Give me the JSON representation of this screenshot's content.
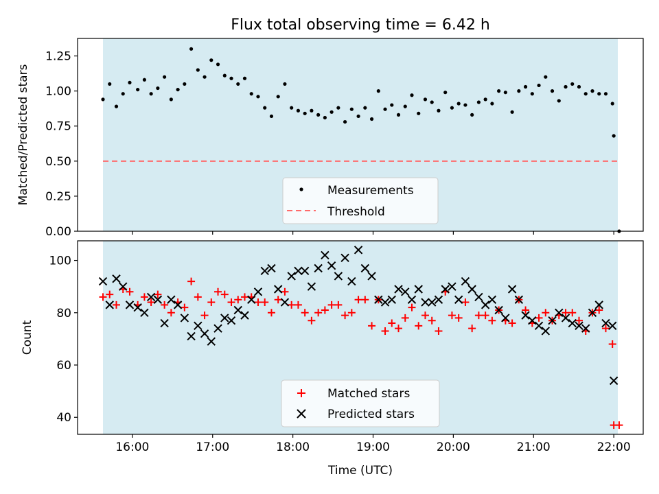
{
  "title": "Flux total observing time = 6.42 h",
  "colors": {
    "span": "#add8e6",
    "measurement": "#000000",
    "threshold": "#ff6b6b",
    "matched": "#ff0000",
    "predicted": "#000000"
  },
  "chart_data": [
    {
      "type": "scatter",
      "ylabel": "Matched/Predicted stars",
      "ylim": [
        0.0,
        1.375
      ],
      "xlim": [
        "15:19",
        "22:22"
      ],
      "yticks": [
        0.0,
        0.25,
        0.5,
        0.75,
        1.0,
        1.25
      ],
      "ytick_labels": [
        "0.00",
        "0.25",
        "0.50",
        "0.75",
        "1.00",
        "1.25"
      ],
      "observing_span": [
        "15:38",
        "22:03"
      ],
      "legend": {
        "position": "bottom-center",
        "labels": [
          "Measurements",
          "Threshold"
        ]
      },
      "threshold": {
        "name": "Threshold",
        "value": 0.5,
        "x_range": [
          "15:38",
          "22:04"
        ]
      },
      "series": [
        {
          "name": "Measurements",
          "marker": "dot",
          "points": [
            [
              "15:38",
              0.94
            ],
            [
              "15:43",
              1.05
            ],
            [
              "15:48",
              0.89
            ],
            [
              "15:53",
              0.98
            ],
            [
              "15:58",
              1.06
            ],
            [
              "16:04",
              1.01
            ],
            [
              "16:09",
              1.08
            ],
            [
              "16:14",
              0.98
            ],
            [
              "16:19",
              1.02
            ],
            [
              "16:24",
              1.1
            ],
            [
              "16:29",
              0.94
            ],
            [
              "16:34",
              1.01
            ],
            [
              "16:39",
              1.05
            ],
            [
              "16:44",
              1.3
            ],
            [
              "16:49",
              1.15
            ],
            [
              "16:54",
              1.1
            ],
            [
              "16:59",
              1.22
            ],
            [
              "17:04",
              1.19
            ],
            [
              "17:09",
              1.11
            ],
            [
              "17:14",
              1.09
            ],
            [
              "17:19",
              1.05
            ],
            [
              "17:24",
              1.09
            ],
            [
              "17:29",
              0.98
            ],
            [
              "17:34",
              0.96
            ],
            [
              "17:39",
              0.88
            ],
            [
              "17:44",
              0.82
            ],
            [
              "17:49",
              0.96
            ],
            [
              "17:54",
              1.05
            ],
            [
              "17:59",
              0.88
            ],
            [
              "18:04",
              0.86
            ],
            [
              "18:09",
              0.84
            ],
            [
              "18:14",
              0.86
            ],
            [
              "18:19",
              0.83
            ],
            [
              "18:24",
              0.81
            ],
            [
              "18:29",
              0.85
            ],
            [
              "18:34",
              0.88
            ],
            [
              "18:39",
              0.78
            ],
            [
              "18:44",
              0.87
            ],
            [
              "18:49",
              0.82
            ],
            [
              "18:54",
              0.88
            ],
            [
              "18:59",
              0.8
            ],
            [
              "19:04",
              1.0
            ],
            [
              "19:09",
              0.87
            ],
            [
              "19:14",
              0.9
            ],
            [
              "19:19",
              0.83
            ],
            [
              "19:24",
              0.89
            ],
            [
              "19:29",
              0.97
            ],
            [
              "19:34",
              0.84
            ],
            [
              "19:39",
              0.94
            ],
            [
              "19:44",
              0.92
            ],
            [
              "19:49",
              0.86
            ],
            [
              "19:54",
              0.99
            ],
            [
              "19:59",
              0.88
            ],
            [
              "20:04",
              0.91
            ],
            [
              "20:09",
              0.9
            ],
            [
              "20:14",
              0.83
            ],
            [
              "20:19",
              0.92
            ],
            [
              "20:24",
              0.94
            ],
            [
              "20:29",
              0.91
            ],
            [
              "20:34",
              1.0
            ],
            [
              "20:39",
              0.99
            ],
            [
              "20:44",
              0.85
            ],
            [
              "20:49",
              1.0
            ],
            [
              "20:54",
              1.03
            ],
            [
              "20:59",
              0.98
            ],
            [
              "21:04",
              1.04
            ],
            [
              "21:09",
              1.1
            ],
            [
              "21:14",
              1.0
            ],
            [
              "21:19",
              0.93
            ],
            [
              "21:24",
              1.03
            ],
            [
              "21:29",
              1.05
            ],
            [
              "21:34",
              1.03
            ],
            [
              "21:39",
              0.98
            ],
            [
              "21:44",
              1.0
            ],
            [
              "21:49",
              0.98
            ],
            [
              "21:54",
              0.98
            ],
            [
              "21:59",
              0.91
            ],
            [
              "22:00",
              0.68
            ],
            [
              "22:04",
              0.0
            ]
          ]
        }
      ]
    },
    {
      "type": "scatter",
      "xlabel": "Time (UTC)",
      "ylabel": "Count",
      "ylim": [
        33.5,
        107.5
      ],
      "xlim": [
        "15:19",
        "22:22"
      ],
      "xticks": [
        "16:00",
        "17:00",
        "18:00",
        "19:00",
        "20:00",
        "21:00",
        "22:00"
      ],
      "yticks": [
        40,
        60,
        80,
        100
      ],
      "ytick_labels": [
        "40",
        "60",
        "80",
        "100"
      ],
      "observing_span": [
        "15:38",
        "22:03"
      ],
      "legend": {
        "position": "bottom-center",
        "labels": [
          "Matched stars",
          "Predicted stars"
        ]
      },
      "series": [
        {
          "name": "Matched stars",
          "marker": "plus",
          "points": [
            [
              "15:38",
              86
            ],
            [
              "15:43",
              87
            ],
            [
              "15:48",
              83
            ],
            [
              "15:53",
              89
            ],
            [
              "15:58",
              88
            ],
            [
              "16:04",
              83
            ],
            [
              "16:09",
              86
            ],
            [
              "16:14",
              84
            ],
            [
              "16:19",
              87
            ],
            [
              "16:24",
              83
            ],
            [
              "16:29",
              80
            ],
            [
              "16:34",
              84
            ],
            [
              "16:39",
              82
            ],
            [
              "16:44",
              92
            ],
            [
              "16:49",
              86
            ],
            [
              "16:54",
              79
            ],
            [
              "16:59",
              84
            ],
            [
              "17:04",
              88
            ],
            [
              "17:09",
              87
            ],
            [
              "17:14",
              84
            ],
            [
              "17:19",
              85
            ],
            [
              "17:24",
              86
            ],
            [
              "17:29",
              86
            ],
            [
              "17:34",
              84
            ],
            [
              "17:39",
              84
            ],
            [
              "17:44",
              80
            ],
            [
              "17:49",
              85
            ],
            [
              "17:54",
              88
            ],
            [
              "17:59",
              83
            ],
            [
              "18:04",
              83
            ],
            [
              "18:09",
              80
            ],
            [
              "18:14",
              77
            ],
            [
              "18:19",
              80
            ],
            [
              "18:24",
              81
            ],
            [
              "18:29",
              83
            ],
            [
              "18:34",
              83
            ],
            [
              "18:39",
              79
            ],
            [
              "18:44",
              80
            ],
            [
              "18:49",
              85
            ],
            [
              "18:54",
              85
            ],
            [
              "18:59",
              75
            ],
            [
              "19:04",
              85
            ],
            [
              "19:09",
              73
            ],
            [
              "19:14",
              76
            ],
            [
              "19:19",
              74
            ],
            [
              "19:24",
              78
            ],
            [
              "19:29",
              82
            ],
            [
              "19:34",
              75
            ],
            [
              "19:39",
              79
            ],
            [
              "19:44",
              77
            ],
            [
              "19:49",
              73
            ],
            [
              "19:54",
              88
            ],
            [
              "19:59",
              79
            ],
            [
              "20:04",
              78
            ],
            [
              "20:09",
              84
            ],
            [
              "20:14",
              74
            ],
            [
              "20:19",
              79
            ],
            [
              "20:24",
              79
            ],
            [
              "20:29",
              77
            ],
            [
              "20:34",
              81
            ],
            [
              "20:39",
              77
            ],
            [
              "20:44",
              76
            ],
            [
              "20:49",
              85
            ],
            [
              "20:54",
              81
            ],
            [
              "20:59",
              76
            ],
            [
              "21:04",
              78
            ],
            [
              "21:09",
              80
            ],
            [
              "21:14",
              77
            ],
            [
              "21:19",
              79
            ],
            [
              "21:24",
              80
            ],
            [
              "21:29",
              80
            ],
            [
              "21:34",
              77
            ],
            [
              "21:39",
              73
            ],
            [
              "21:44",
              80
            ],
            [
              "21:49",
              81
            ],
            [
              "21:54",
              74
            ],
            [
              "21:59",
              68
            ],
            [
              "22:00",
              37
            ],
            [
              "22:04",
              37
            ]
          ]
        },
        {
          "name": "Predicted stars",
          "marker": "x",
          "points": [
            [
              "15:38",
              92
            ],
            [
              "15:43",
              83
            ],
            [
              "15:48",
              93
            ],
            [
              "15:53",
              90
            ],
            [
              "15:58",
              83
            ],
            [
              "16:04",
              82
            ],
            [
              "16:09",
              80
            ],
            [
              "16:14",
              86
            ],
            [
              "16:19",
              85
            ],
            [
              "16:24",
              76
            ],
            [
              "16:29",
              85
            ],
            [
              "16:34",
              83
            ],
            [
              "16:39",
              78
            ],
            [
              "16:44",
              71
            ],
            [
              "16:49",
              75
            ],
            [
              "16:54",
              72
            ],
            [
              "16:59",
              69
            ],
            [
              "17:04",
              74
            ],
            [
              "17:09",
              78
            ],
            [
              "17:14",
              77
            ],
            [
              "17:19",
              81
            ],
            [
              "17:24",
              79
            ],
            [
              "17:29",
              85
            ],
            [
              "17:34",
              88
            ],
            [
              "17:39",
              96
            ],
            [
              "17:44",
              97
            ],
            [
              "17:49",
              89
            ],
            [
              "17:54",
              84
            ],
            [
              "17:59",
              94
            ],
            [
              "18:04",
              96
            ],
            [
              "18:09",
              96
            ],
            [
              "18:14",
              90
            ],
            [
              "18:19",
              97
            ],
            [
              "18:24",
              102
            ],
            [
              "18:29",
              98
            ],
            [
              "18:34",
              94
            ],
            [
              "18:39",
              101
            ],
            [
              "18:44",
              92
            ],
            [
              "18:49",
              104
            ],
            [
              "18:54",
              97
            ],
            [
              "18:59",
              94
            ],
            [
              "19:04",
              85
            ],
            [
              "19:09",
              84
            ],
            [
              "19:14",
              85
            ],
            [
              "19:19",
              89
            ],
            [
              "19:24",
              88
            ],
            [
              "19:29",
              85
            ],
            [
              "19:34",
              89
            ],
            [
              "19:39",
              84
            ],
            [
              "19:44",
              84
            ],
            [
              "19:49",
              85
            ],
            [
              "19:54",
              89
            ],
            [
              "19:59",
              90
            ],
            [
              "20:04",
              85
            ],
            [
              "20:09",
              92
            ],
            [
              "20:14",
              89
            ],
            [
              "20:19",
              86
            ],
            [
              "20:24",
              83
            ],
            [
              "20:29",
              85
            ],
            [
              "20:34",
              81
            ],
            [
              "20:39",
              78
            ],
            [
              "20:44",
              89
            ],
            [
              "20:49",
              85
            ],
            [
              "20:54",
              79
            ],
            [
              "20:59",
              77
            ],
            [
              "21:04",
              75
            ],
            [
              "21:09",
              73
            ],
            [
              "21:14",
              77
            ],
            [
              "21:19",
              80
            ],
            [
              "21:24",
              78
            ],
            [
              "21:29",
              76
            ],
            [
              "21:34",
              75
            ],
            [
              "21:39",
              74
            ],
            [
              "21:44",
              80
            ],
            [
              "21:49",
              83
            ],
            [
              "21:54",
              76
            ],
            [
              "21:59",
              75
            ],
            [
              "22:00",
              54
            ]
          ]
        }
      ]
    }
  ]
}
